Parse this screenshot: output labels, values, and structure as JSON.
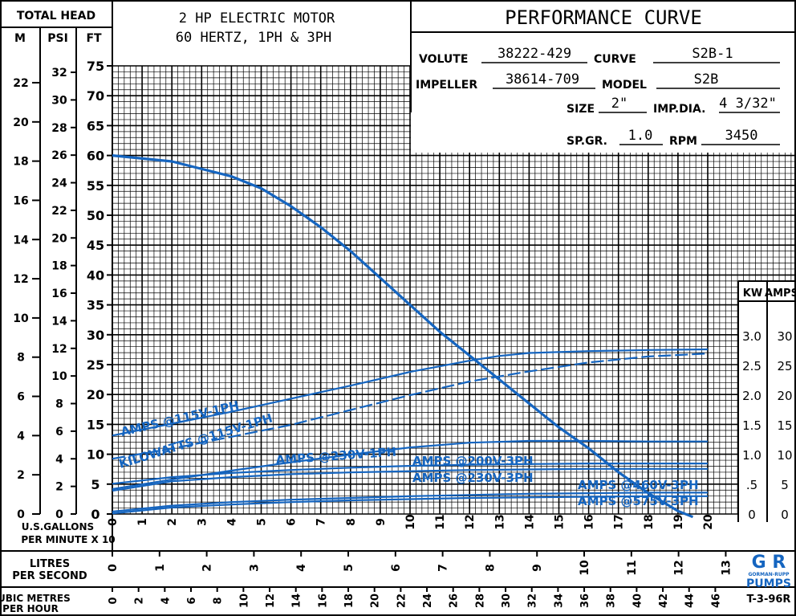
{
  "header": {
    "total_head": "TOTAL HEAD",
    "col_m": "M",
    "col_psi": "PSI",
    "col_ft": "FT",
    "motor_line1": "2 HP ELECTRIC MOTOR",
    "motor_line2": "60 HERTZ, 1PH & 3PH",
    "title": "PERFORMANCE CURVE",
    "volute_label": "VOLUTE",
    "volute_value": "38222-429",
    "curve_label": "CURVE",
    "curve_value": "S2B-1",
    "impeller_label": "IMPELLER",
    "impeller_value": "38614-709",
    "model_label": "MODEL",
    "model_value": "S2B",
    "size_label": "SIZE",
    "size_value": "2\"",
    "impdia_label": "IMP.DIA.",
    "impdia_value": "4 3/32\"",
    "spgr_label": "SP.GR.",
    "spgr_value": "1.0",
    "rpm_label": "RPM",
    "rpm_value": "3450"
  },
  "footer": {
    "gallons_label_1": "U.S.GALLONS",
    "gallons_label_2": "PER MINUTE  X 10",
    "litres_label_1": "LITRES",
    "litres_label_2": "PER SECOND",
    "cubic_label_1": "CUBIC METRES",
    "cubic_label_2": "PER HOUR",
    "brand_logo": "G R",
    "brand_name": "GORMAN-RUPP",
    "brand_pumps": "PUMPS",
    "doc_code": "T-3-96R"
  },
  "chart_data": {
    "type": "line",
    "xlabel": "U.S.GALLONS PER MINUTE X 10",
    "xlim": [
      0,
      20
    ],
    "x_ticks": [
      "0",
      "1",
      "2",
      "3",
      "4",
      "5",
      "6",
      "7",
      "8",
      "9",
      "10",
      "11",
      "12",
      "13",
      "14",
      "15",
      "16",
      "17",
      "18",
      "19",
      "20"
    ],
    "ylabel": "TOTAL HEAD",
    "ylim_ft": [
      0,
      75
    ],
    "ft_ticks": [
      "0",
      "5",
      "10",
      "15",
      "20",
      "25",
      "30",
      "35",
      "40",
      "45",
      "50",
      "55",
      "60",
      "65",
      "70",
      "75"
    ],
    "m_ticks": [
      "0",
      "2",
      "4",
      "6",
      "8",
      "10",
      "12",
      "14",
      "16",
      "18",
      "20",
      "22"
    ],
    "psi_ticks": [
      "0",
      "2",
      "4",
      "6",
      "8",
      "10",
      "12",
      "14",
      "16",
      "18",
      "20",
      "22",
      "24",
      "26",
      "28",
      "30",
      "32"
    ],
    "kw_label": "KW",
    "amps_label": "AMPS",
    "kw_ticks": [
      "0",
      ".5",
      "1.0",
      "1.5",
      "2.0",
      "2.5",
      "3.0"
    ],
    "amps_ticks": [
      "0",
      "5",
      "10",
      "15",
      "20",
      "25",
      "30"
    ],
    "litres_ticks": [
      "0",
      "1",
      "2",
      "3",
      "4",
      "5",
      "6",
      "7",
      "8",
      "9",
      "10",
      "11",
      "12",
      "13"
    ],
    "cubic_ticks": [
      "0",
      "2",
      "4",
      "6",
      "8",
      "10",
      "12",
      "14",
      "16",
      "18",
      "20",
      "22",
      "24",
      "26",
      "28",
      "30",
      "32",
      "34",
      "36",
      "38",
      "40",
      "42",
      "44",
      "46"
    ],
    "series": [
      {
        "name": "HEAD",
        "unit": "ft",
        "color": "#1565c0",
        "x": [
          0,
          2,
          4,
          5,
          6,
          7,
          8,
          9,
          10,
          11,
          12,
          13,
          14,
          15,
          16,
          17,
          18,
          19,
          19.5
        ],
        "y": [
          60,
          59,
          56.5,
          54.5,
          51.5,
          48,
          44,
          39.5,
          35,
          30.5,
          26.5,
          22.5,
          18.5,
          14.5,
          11,
          7,
          3.5,
          0.5,
          -0.5
        ]
      },
      {
        "name": "AMPS @115V-1PH",
        "unit": "amps",
        "color": "#1565c0",
        "x": [
          0,
          2,
          4,
          6,
          8,
          10,
          12,
          13,
          14,
          16,
          18,
          20
        ],
        "y": [
          13.2,
          15.2,
          17.2,
          19.4,
          21.6,
          23.9,
          25.8,
          26.6,
          27.1,
          27.4,
          27.6,
          27.7
        ]
      },
      {
        "name": "KILOWATTS @115V-1PH",
        "unit": "kw",
        "dashed": true,
        "color": "#1565c0",
        "x": [
          0,
          2,
          4,
          6,
          8,
          10,
          12,
          14,
          16,
          18,
          20
        ],
        "y": [
          0.93,
          1.1,
          1.3,
          1.5,
          1.75,
          2.0,
          2.23,
          2.4,
          2.55,
          2.65,
          2.7
        ]
      },
      {
        "name": "AMPS @230V-1PH",
        "unit": "amps",
        "color": "#1565c0",
        "x": [
          0,
          2,
          4,
          6,
          8,
          10,
          12,
          14,
          16,
          18,
          20
        ],
        "y": [
          4.2,
          5.8,
          7.3,
          8.7,
          10.0,
          11.2,
          12.0,
          12.3,
          12.3,
          12.2,
          12.2
        ]
      },
      {
        "name": "AMPS @200V-3PH",
        "unit": "amps",
        "color": "#1565c0",
        "x": [
          0,
          2,
          4,
          6,
          8,
          10,
          12,
          14,
          16,
          18,
          20
        ],
        "y": [
          5.1,
          6.2,
          6.9,
          7.4,
          7.8,
          8.1,
          8.3,
          8.4,
          8.5,
          8.5,
          8.5
        ]
      },
      {
        "name": "AMPS @230V-3PH",
        "unit": "amps",
        "color": "#1565c0",
        "x": [
          0,
          2,
          4,
          6,
          8,
          10,
          12,
          14,
          16,
          18,
          20
        ],
        "y": [
          3.9,
          5.5,
          6.2,
          6.7,
          7.0,
          7.2,
          7.4,
          7.5,
          7.6,
          7.6,
          7.6
        ]
      },
      {
        "name": "AMPS @460V-3PH",
        "unit": "amps",
        "color": "#1565c0",
        "x": [
          0,
          2,
          4,
          6,
          8,
          10,
          12,
          14,
          16,
          18,
          20
        ],
        "y": [
          0.4,
          1.4,
          2.0,
          2.4,
          2.7,
          3.0,
          3.2,
          3.4,
          3.5,
          3.6,
          3.6
        ]
      },
      {
        "name": "AMPS @575V-3PH",
        "unit": "amps",
        "color": "#1565c0",
        "x": [
          0,
          2,
          4,
          6,
          8,
          10,
          12,
          14,
          16,
          18,
          20
        ],
        "y": [
          0.1,
          1.1,
          1.6,
          2.0,
          2.3,
          2.5,
          2.7,
          2.8,
          2.9,
          3.0,
          3.0
        ]
      }
    ],
    "curve_labels": [
      "AMPS @115V-1PH",
      "KILOWATTS @115V-1PH",
      "AMPS @230V-1PH",
      "AMPS @200V-3PH",
      "AMPS @230V-3PH",
      "AMPS @460V-3PH",
      "AMPS @575V-3PH"
    ],
    "grid": true
  }
}
